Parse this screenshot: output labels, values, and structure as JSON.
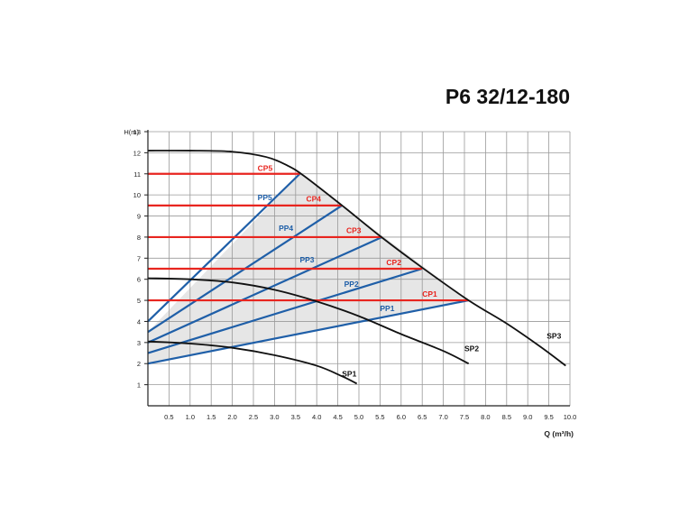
{
  "chart_data": {
    "type": "line",
    "title": "P6 32/12-180",
    "xlabel": "Q (m³/h)",
    "ylabel": "H(m)",
    "xlim": [
      0,
      10
    ],
    "ylim": [
      0,
      13
    ],
    "x_ticks": [
      "0.5",
      "1.0",
      "1.5",
      "2.0",
      "2.5",
      "3.0",
      "3.5",
      "4.0",
      "4.5",
      "5.0",
      "5.5",
      "6.0",
      "6.5",
      "7.0",
      "7.5",
      "8.0",
      "8.5",
      "9.0",
      "9.5",
      "10.0"
    ],
    "y_ticks": [
      "1",
      "2",
      "3",
      "4",
      "5",
      "6",
      "7",
      "8",
      "9",
      "10",
      "11",
      "12",
      "13"
    ],
    "grid": true,
    "shaded_region": [
      [
        0,
        3.5
      ],
      [
        3.6,
        11
      ],
      [
        7.6,
        5
      ],
      [
        0,
        2
      ]
    ],
    "series": [
      {
        "name": "SP3",
        "color": "#111111",
        "points": [
          [
            0,
            12.1
          ],
          [
            1,
            12.1
          ],
          [
            2,
            12.05
          ],
          [
            2.8,
            11.8
          ],
          [
            3.3,
            11.4
          ],
          [
            3.7,
            10.9
          ],
          [
            4.6,
            9.5
          ],
          [
            5.5,
            8.05
          ],
          [
            6.5,
            6.55
          ],
          [
            7.6,
            5
          ],
          [
            8.5,
            3.9
          ],
          [
            9.3,
            2.8
          ],
          [
            9.9,
            1.9
          ]
        ]
      },
      {
        "name": "SP2",
        "color": "#111111",
        "points": [
          [
            0,
            6.05
          ],
          [
            1,
            6.0
          ],
          [
            2,
            5.85
          ],
          [
            3,
            5.5
          ],
          [
            4,
            4.95
          ],
          [
            5,
            4.25
          ],
          [
            6,
            3.4
          ],
          [
            7,
            2.6
          ],
          [
            7.6,
            2.0
          ]
        ]
      },
      {
        "name": "SP1",
        "color": "#111111",
        "points": [
          [
            0,
            3.05
          ],
          [
            1,
            2.95
          ],
          [
            2,
            2.75
          ],
          [
            3,
            2.4
          ],
          [
            4,
            1.9
          ],
          [
            4.6,
            1.4
          ],
          [
            4.95,
            1.05
          ]
        ]
      },
      {
        "name": "PP5",
        "color": "#1f5fa8",
        "points": [
          [
            0,
            4.0
          ],
          [
            3.6,
            11.0
          ]
        ]
      },
      {
        "name": "PP4",
        "color": "#1f5fa8",
        "points": [
          [
            0,
            3.5
          ],
          [
            4.6,
            9.5
          ]
        ]
      },
      {
        "name": "PP3",
        "color": "#1f5fa8",
        "points": [
          [
            0,
            3.0
          ],
          [
            5.55,
            8.0
          ]
        ]
      },
      {
        "name": "PP2",
        "color": "#1f5fa8",
        "points": [
          [
            0,
            2.5
          ],
          [
            6.5,
            6.5
          ]
        ]
      },
      {
        "name": "PP1",
        "color": "#1f5fa8",
        "points": [
          [
            0,
            2.0
          ],
          [
            7.6,
            5.0
          ]
        ]
      },
      {
        "name": "CP5",
        "color": "#e8251f",
        "points": [
          [
            0,
            11.0
          ],
          [
            3.6,
            11.0
          ]
        ]
      },
      {
        "name": "CP4",
        "color": "#e8251f",
        "points": [
          [
            0,
            9.5
          ],
          [
            4.6,
            9.5
          ]
        ]
      },
      {
        "name": "CP3",
        "color": "#e8251f",
        "points": [
          [
            0,
            8.0
          ],
          [
            5.55,
            8.0
          ]
        ]
      },
      {
        "name": "CP2",
        "color": "#e8251f",
        "points": [
          [
            0,
            6.5
          ],
          [
            6.5,
            6.5
          ]
        ]
      },
      {
        "name": "CP1",
        "color": "#e8251f",
        "points": [
          [
            0,
            5.0
          ],
          [
            7.6,
            5.0
          ]
        ]
      }
    ],
    "annotations": [
      {
        "text": "CP5",
        "x": 2.6,
        "y": 11.15,
        "color": "#e8251f"
      },
      {
        "text": "CP4",
        "x": 3.75,
        "y": 9.68,
        "color": "#e8251f"
      },
      {
        "text": "CP3",
        "x": 4.7,
        "y": 8.18,
        "color": "#e8251f"
      },
      {
        "text": "CP2",
        "x": 5.65,
        "y": 6.68,
        "color": "#e8251f"
      },
      {
        "text": "CP1",
        "x": 6.5,
        "y": 5.18,
        "color": "#e8251f"
      },
      {
        "text": "PP5",
        "x": 2.6,
        "y": 9.75,
        "color": "#1f5fa8"
      },
      {
        "text": "PP4",
        "x": 3.1,
        "y": 8.3,
        "color": "#1f5fa8"
      },
      {
        "text": "PP3",
        "x": 3.6,
        "y": 6.8,
        "color": "#1f5fa8"
      },
      {
        "text": "PP2",
        "x": 4.65,
        "y": 5.65,
        "color": "#1f5fa8"
      },
      {
        "text": "PP1",
        "x": 5.5,
        "y": 4.5,
        "color": "#1f5fa8"
      },
      {
        "text": "SP3",
        "x": 9.45,
        "y": 3.18,
        "color": "#111111"
      },
      {
        "text": "SP2",
        "x": 7.5,
        "y": 2.58,
        "color": "#111111"
      },
      {
        "text": "SP1",
        "x": 4.6,
        "y": 1.38,
        "color": "#111111"
      }
    ]
  }
}
